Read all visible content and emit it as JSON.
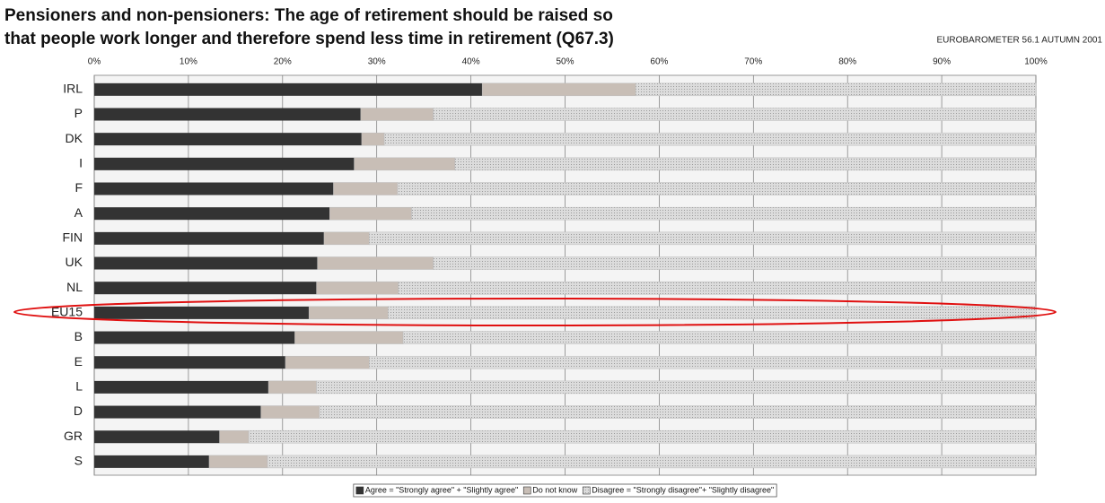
{
  "chart_data": {
    "type": "stacked_barh",
    "title": [
      "Pensioners and non-pensioners: The age of retirement should be raised so",
      "that people work longer and therefore spend less time in retirement (Q67.3)"
    ],
    "source": "EUROBAROMETER 56.1 AUTUMN 2001",
    "categories": [
      "IRL",
      "P",
      "DK",
      "I",
      "F",
      "A",
      "FIN",
      "UK",
      "NL",
      "EU15",
      "B",
      "E",
      "L",
      "D",
      "GR",
      "S"
    ],
    "series": [
      {
        "name": "Agree = \"Strongly agree\" + \"Slightly agree\"",
        "color": "#333333",
        "values": [
          41.2,
          28.3,
          28.4,
          27.6,
          25.4,
          25.0,
          24.4,
          23.7,
          23.6,
          22.8,
          21.3,
          20.3,
          18.5,
          17.7,
          13.3,
          12.2
        ]
      },
      {
        "name": "Do not know",
        "color": "#c8beb6",
        "values": [
          16.3,
          7.7,
          2.4,
          10.7,
          6.8,
          8.7,
          4.8,
          12.3,
          8.7,
          8.4,
          11.5,
          8.9,
          5.1,
          6.2,
          3.1,
          6.2
        ]
      },
      {
        "name": "Disagree = \"Strongly disagree\"+ \"Slightly disagree\"",
        "color": "#dcdcdc",
        "values": [
          42.5,
          64.0,
          69.2,
          61.7,
          67.8,
          66.3,
          70.8,
          64.0,
          67.7,
          68.8,
          67.2,
          70.8,
          76.4,
          76.1,
          83.6,
          81.6
        ]
      }
    ],
    "xlim": [
      0,
      100
    ],
    "xticks": [
      {
        "value": 0,
        "label": "0%"
      },
      {
        "value": 10,
        "label": "10%"
      },
      {
        "value": 20,
        "label": "20%"
      },
      {
        "value": 30,
        "label": "30%"
      },
      {
        "value": 40,
        "label": "40%"
      },
      {
        "value": 50,
        "label": "50%"
      },
      {
        "value": 60,
        "label": "60%"
      },
      {
        "value": 70,
        "label": "70%"
      },
      {
        "value": 80,
        "label": "80%"
      },
      {
        "value": 90,
        "label": "90%"
      },
      {
        "value": 100,
        "label": "100%"
      }
    ],
    "grid": true
  }
}
